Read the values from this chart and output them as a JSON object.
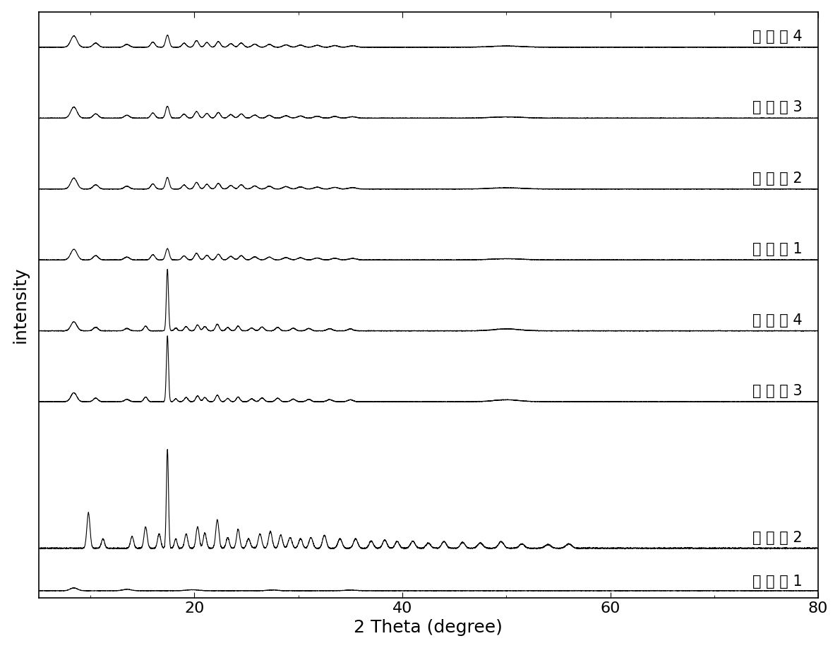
{
  "xlabel": "2 Theta (degree)",
  "ylabel": "intensity",
  "xlim": [
    5,
    80
  ],
  "xticks": [
    20,
    40,
    60,
    80
  ],
  "labels": [
    "比 较 例 1",
    "比 较 例 2",
    "比 较 例 3",
    "比 较 例 4",
    "实 施 例 1",
    "实 施 例 2",
    "实 施 例 3",
    "实 施 例 4"
  ],
  "label_fontsize": 15,
  "axis_label_fontsize": 18,
  "tick_fontsize": 16,
  "linecolor": "#000000",
  "linewidth": 0.8,
  "background": "#ffffff"
}
